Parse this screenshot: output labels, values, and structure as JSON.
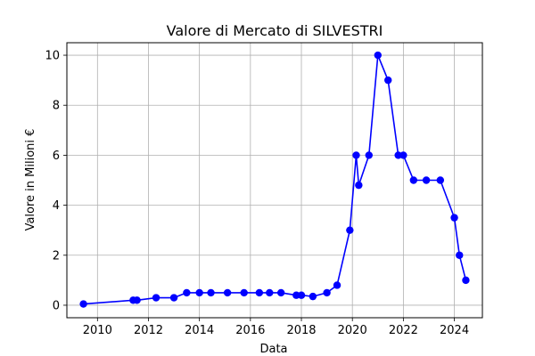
{
  "chart_data": {
    "type": "line",
    "title": "Valore di Mercato di SILVESTRI",
    "xlabel": "Data",
    "ylabel": "Valore in Milioni €",
    "xlim": [
      2008.8,
      2025.1
    ],
    "ylim": [
      -0.5,
      10.5
    ],
    "x_ticks": [
      2010,
      2012,
      2014,
      2016,
      2018,
      2020,
      2022,
      2024
    ],
    "y_ticks": [
      0,
      2,
      4,
      6,
      8,
      10
    ],
    "grid": true,
    "line_color": "#0000ff",
    "series": [
      {
        "marker": "circle",
        "points": [
          {
            "x": 2009.45,
            "y": 0.05
          },
          {
            "x": 2011.4,
            "y": 0.2
          },
          {
            "x": 2011.55,
            "y": 0.2
          },
          {
            "x": 2012.3,
            "y": 0.3
          },
          {
            "x": 2013.0,
            "y": 0.3
          },
          {
            "x": 2013.5,
            "y": 0.5
          },
          {
            "x": 2014.0,
            "y": 0.5
          },
          {
            "x": 2014.45,
            "y": 0.5
          },
          {
            "x": 2015.1,
            "y": 0.5
          },
          {
            "x": 2015.75,
            "y": 0.5
          },
          {
            "x": 2016.35,
            "y": 0.5
          },
          {
            "x": 2016.75,
            "y": 0.5
          },
          {
            "x": 2017.2,
            "y": 0.5
          },
          {
            "x": 2017.8,
            "y": 0.4
          },
          {
            "x": 2018.0,
            "y": 0.4
          },
          {
            "x": 2018.45,
            "y": 0.35
          },
          {
            "x": 2019.0,
            "y": 0.5
          },
          {
            "x": 2019.4,
            "y": 0.8
          },
          {
            "x": 2019.9,
            "y": 3.0
          },
          {
            "x": 2020.15,
            "y": 6.0
          },
          {
            "x": 2020.25,
            "y": 4.8
          },
          {
            "x": 2020.65,
            "y": 6.0
          },
          {
            "x": 2021.0,
            "y": 10.0
          },
          {
            "x": 2021.4,
            "y": 9.0
          },
          {
            "x": 2021.8,
            "y": 6.0
          },
          {
            "x": 2022.0,
            "y": 6.0
          },
          {
            "x": 2022.4,
            "y": 5.0
          },
          {
            "x": 2022.9,
            "y": 5.0
          },
          {
            "x": 2023.45,
            "y": 5.0
          },
          {
            "x": 2024.0,
            "y": 3.5
          },
          {
            "x": 2024.2,
            "y": 2.0
          },
          {
            "x": 2024.45,
            "y": 1.0
          }
        ]
      }
    ]
  }
}
